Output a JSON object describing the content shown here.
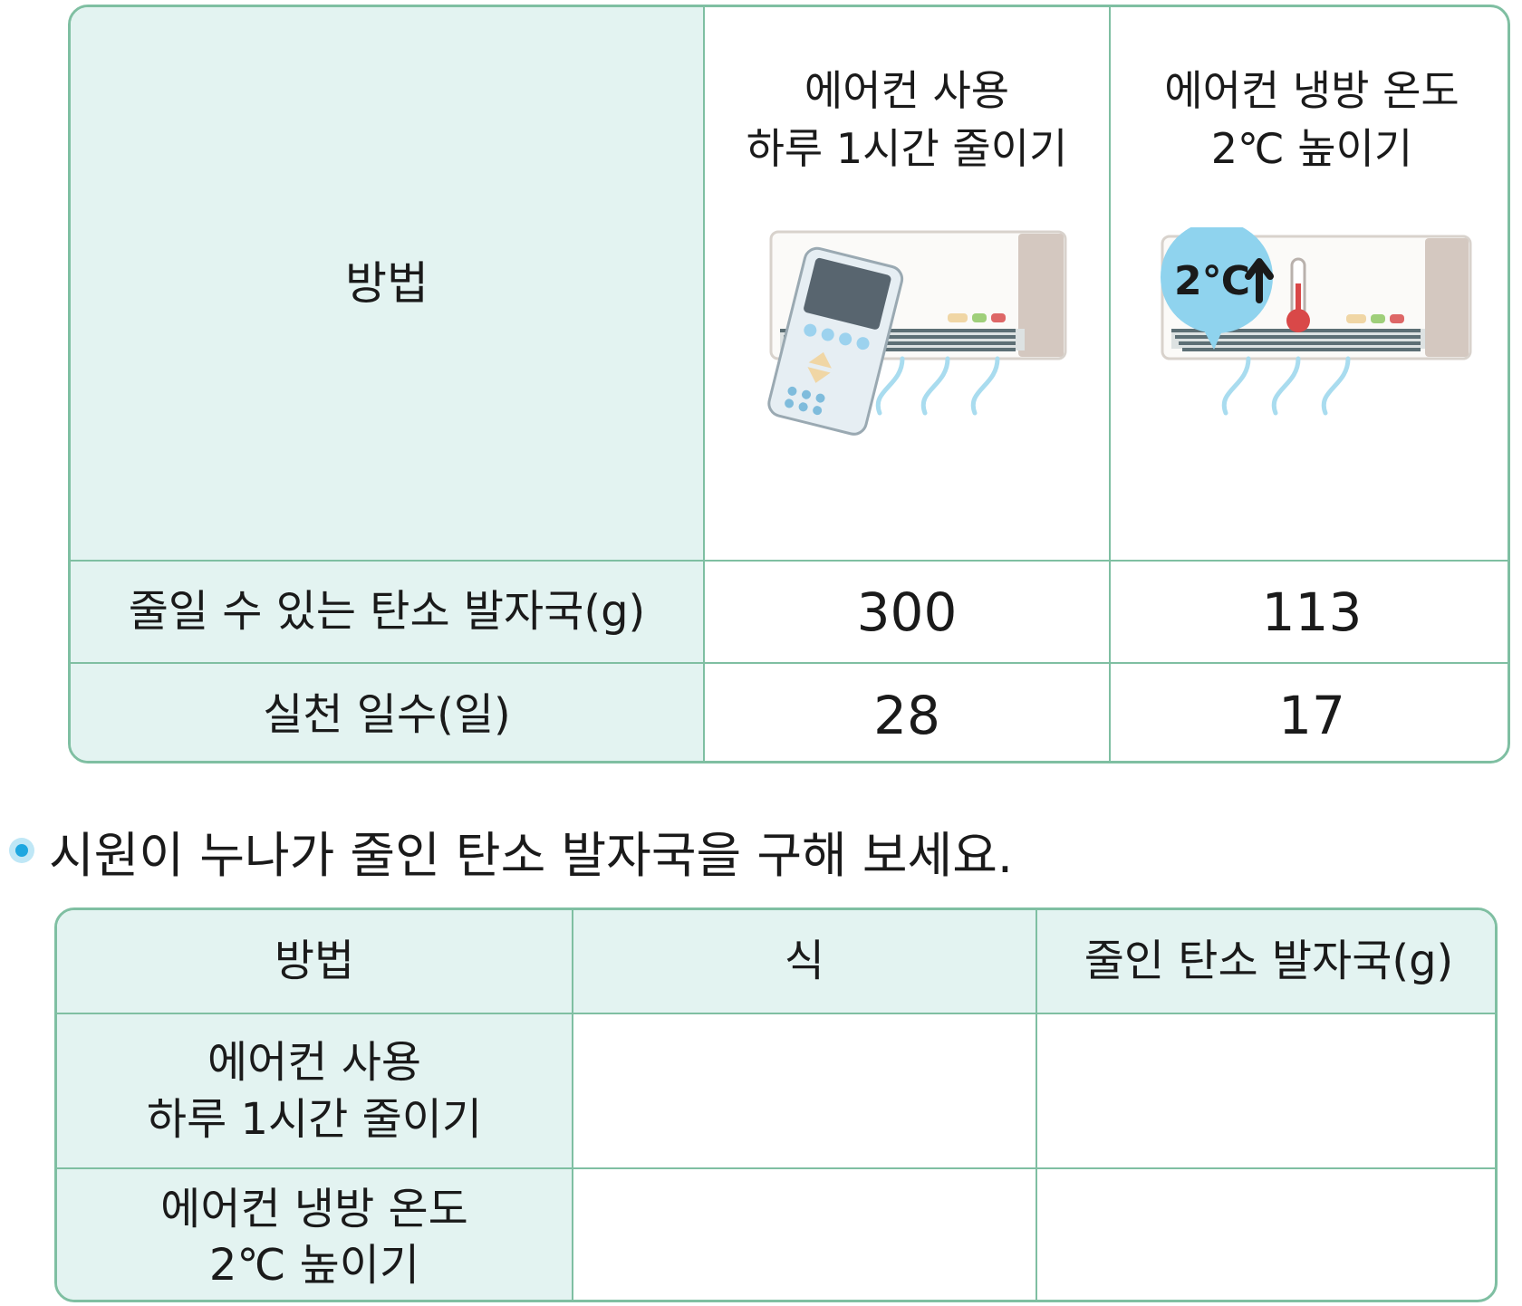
{
  "table1": {
    "header_label": "방법",
    "methods": [
      {
        "title_line1": "에어컨 사용",
        "title_line2": "하루 1시간 줄이기",
        "icon": "remote-control-air-conditioner-icon"
      },
      {
        "title_line1": "에어컨 냉방 온도",
        "title_line2": "2℃ 높이기",
        "icon": "air-conditioner-thermometer-icon",
        "badge": "2℃"
      }
    ],
    "rows": [
      {
        "label": "줄일 수 있는 탄소 발자국(g)",
        "values": [
          "300",
          "113"
        ]
      },
      {
        "label": "실천 일수(일)",
        "values": [
          "28",
          "17"
        ]
      }
    ]
  },
  "question": "시원이 누나가 줄인 탄소 발자국을 구해 보세요.",
  "table2": {
    "headers": [
      "방법",
      "식",
      "줄인 탄소 발자국(g)"
    ],
    "rows": [
      {
        "line1": "에어컨 사용",
        "line2": "하루 1시간 줄이기",
        "formula": "",
        "result": ""
      },
      {
        "line1": "에어컨 냉방 온도",
        "line2": "2℃ 높이기",
        "formula": "",
        "result": ""
      }
    ]
  },
  "colors": {
    "border": "#7fbfa2",
    "header_bg": "#e3f3f1",
    "bullet": "#1ea7e0",
    "bubble": "#8fd3ee",
    "thermo_red": "#d94848"
  }
}
